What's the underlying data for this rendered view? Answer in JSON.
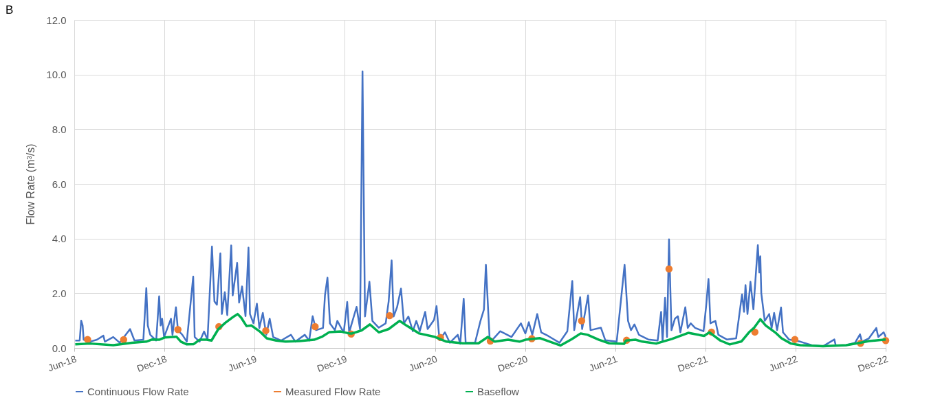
{
  "chart_data": {
    "type": "line",
    "ylabel": "Flow Rate (m³/s)",
    "annotations": [
      "B"
    ],
    "xlim": [
      "2018-06-01",
      "2022-12-01"
    ],
    "xticks": [
      {
        "value": "2018-06-01",
        "label": "Jun-18"
      },
      {
        "value": "2018-12-01",
        "label": "Dec-18"
      },
      {
        "value": "2019-06-01",
        "label": "Jun-19"
      },
      {
        "value": "2019-12-01",
        "label": "Dec-19"
      },
      {
        "value": "2020-06-01",
        "label": "Jun-20"
      },
      {
        "value": "2020-12-01",
        "label": "Dec-20"
      },
      {
        "value": "2021-06-01",
        "label": "Jun-21"
      },
      {
        "value": "2021-12-01",
        "label": "Dec-21"
      },
      {
        "value": "2022-06-01",
        "label": "Jun-22"
      },
      {
        "value": "2022-12-01",
        "label": "Dec-22"
      }
    ],
    "ylim": [
      0,
      12
    ],
    "yticks": [
      {
        "value": 0,
        "label": "0.0"
      },
      {
        "value": 2,
        "label": "2.0"
      },
      {
        "value": 4,
        "label": "4.0"
      },
      {
        "value": 6,
        "label": "6.0"
      },
      {
        "value": 8,
        "label": "8.0"
      },
      {
        "value": 10,
        "label": "10.0"
      },
      {
        "value": 12,
        "label": "12.0"
      }
    ],
    "grid": true,
    "legend": "bottom",
    "series": [
      {
        "name": "Continuous Flow Rate",
        "type": "line",
        "color": "#4472c4",
        "x": [
          "2018-06-03",
          "2018-06-12",
          "2018-06-15",
          "2018-06-18",
          "2018-06-20",
          "2018-07-03",
          "2018-07-17",
          "2018-07-30",
          "2018-08-02",
          "2018-08-19",
          "2018-09-01",
          "2018-09-22",
          "2018-10-01",
          "2018-10-19",
          "2018-10-25",
          "2018-10-28",
          "2018-11-02",
          "2018-11-14",
          "2018-11-20",
          "2018-11-23",
          "2018-11-26",
          "2018-11-30",
          "2018-12-14",
          "2018-12-17",
          "2018-12-24",
          "2018-12-28",
          "2019-01-06",
          "2019-01-15",
          "2019-01-28",
          "2019-01-31",
          "2019-02-10",
          "2019-02-19",
          "2019-02-26",
          "2019-03-07",
          "2019-03-12",
          "2019-03-17",
          "2019-03-24",
          "2019-03-27",
          "2019-04-02",
          "2019-04-07",
          "2019-04-15",
          "2019-04-18",
          "2019-04-27",
          "2019-05-01",
          "2019-05-07",
          "2019-05-14",
          "2019-05-20",
          "2019-05-23",
          "2019-05-30",
          "2019-06-06",
          "2019-06-11",
          "2019-06-18",
          "2019-06-25",
          "2019-07-02",
          "2019-07-09",
          "2019-07-25",
          "2019-08-14",
          "2019-08-23",
          "2019-09-11",
          "2019-09-20",
          "2019-09-27",
          "2019-10-04",
          "2019-10-18",
          "2019-10-22",
          "2019-10-27",
          "2019-11-01",
          "2019-11-11",
          "2019-11-16",
          "2019-11-25",
          "2019-11-29",
          "2019-12-06",
          "2019-12-10",
          "2019-12-25",
          "2020-01-01",
          "2020-01-06",
          "2020-01-11",
          "2020-01-20",
          "2020-01-26",
          "2020-02-08",
          "2020-02-22",
          "2020-02-28",
          "2020-03-05",
          "2020-03-09",
          "2020-03-16",
          "2020-03-24",
          "2020-03-30",
          "2020-04-08",
          "2020-04-17",
          "2020-04-24",
          "2020-05-01",
          "2020-05-12",
          "2020-05-17",
          "2020-05-30",
          "2020-06-04",
          "2020-06-10",
          "2020-06-21",
          "2020-07-01",
          "2020-07-17",
          "2020-07-22",
          "2020-07-29",
          "2020-08-02",
          "2020-08-21",
          "2020-09-01",
          "2020-09-08",
          "2020-09-12",
          "2020-09-17",
          "2020-09-20",
          "2020-10-11",
          "2020-11-03",
          "2020-11-22",
          "2020-12-01",
          "2020-12-08",
          "2020-12-15",
          "2020-12-25",
          "2021-01-02",
          "2021-01-16",
          "2021-02-08",
          "2021-02-24",
          "2021-03-06",
          "2021-03-10",
          "2021-03-22",
          "2021-03-26",
          "2021-04-07",
          "2021-04-12",
          "2021-05-03",
          "2021-05-12",
          "2021-06-04",
          "2021-06-20",
          "2021-06-27",
          "2021-07-03",
          "2021-07-10",
          "2021-07-19",
          "2021-08-07",
          "2021-08-26",
          "2021-09-02",
          "2021-09-05",
          "2021-09-10",
          "2021-09-14",
          "2021-09-18",
          "2021-09-23",
          "2021-09-30",
          "2021-10-06",
          "2021-10-11",
          "2021-10-21",
          "2021-10-26",
          "2021-11-01",
          "2021-11-10",
          "2021-11-27",
          "2021-12-02",
          "2021-12-07",
          "2021-12-11",
          "2021-12-21",
          "2021-12-27",
          "2022-01-13",
          "2022-02-01",
          "2022-02-13",
          "2022-02-17",
          "2022-02-20",
          "2022-02-24",
          "2022-03-02",
          "2022-03-08",
          "2022-03-17",
          "2022-03-20",
          "2022-03-22",
          "2022-03-24",
          "2022-03-31",
          "2022-04-09",
          "2022-04-14",
          "2022-04-19",
          "2022-04-25",
          "2022-05-03",
          "2022-05-07",
          "2022-05-19",
          "2022-06-11",
          "2022-07-04",
          "2022-07-27",
          "2022-08-19",
          "2022-08-22",
          "2022-09-12",
          "2022-09-30",
          "2022-10-10",
          "2022-10-14",
          "2022-10-28",
          "2022-11-12",
          "2022-11-16",
          "2022-11-27",
          "2022-12-01"
        ],
        "values": [
          0.27,
          0.27,
          1.0,
          0.82,
          0.3,
          0.23,
          0.3,
          0.45,
          0.23,
          0.4,
          0.19,
          0.69,
          0.27,
          0.3,
          2.19,
          0.82,
          0.48,
          0.27,
          1.89,
          0.82,
          1.07,
          0.4,
          1.07,
          0.48,
          1.49,
          0.65,
          0.48,
          0.23,
          2.61,
          0.4,
          0.23,
          0.6,
          0.3,
          3.71,
          1.7,
          1.58,
          3.46,
          1.24,
          2.04,
          1.2,
          3.75,
          1.92,
          3.11,
          1.66,
          2.25,
          1.16,
          3.67,
          1.24,
          0.9,
          1.62,
          0.73,
          1.28,
          0.48,
          1.07,
          0.4,
          0.27,
          0.48,
          0.23,
          0.48,
          0.27,
          1.16,
          0.65,
          0.73,
          1.93,
          2.57,
          0.9,
          0.65,
          0.99,
          0.69,
          0.57,
          1.68,
          0.57,
          1.5,
          0.69,
          10.12,
          1.15,
          2.42,
          0.99,
          0.74,
          0.9,
          1.7,
          3.2,
          1.15,
          1.49,
          2.17,
          0.9,
          1.15,
          0.61,
          0.99,
          0.61,
          1.32,
          0.69,
          1.03,
          1.53,
          0.28,
          0.57,
          0.19,
          0.48,
          0.15,
          1.8,
          0.19,
          0.19,
          0.99,
          1.4,
          3.04,
          1.24,
          0.19,
          0.61,
          0.4,
          0.9,
          0.53,
          0.94,
          0.48,
          1.24,
          0.57,
          0.44,
          0.19,
          0.61,
          2.45,
          0.65,
          1.86,
          0.69,
          1.92,
          0.65,
          0.74,
          0.28,
          0.23,
          3.04,
          0.99,
          0.65,
          0.86,
          0.48,
          0.31,
          0.27,
          1.32,
          0.23,
          1.83,
          0.4,
          3.97,
          0.65,
          1.07,
          1.16,
          0.57,
          1.49,
          0.73,
          0.9,
          0.73,
          0.61,
          1.49,
          2.52,
          0.9,
          0.99,
          0.48,
          0.31,
          0.35,
          1.96,
          1.32,
          2.3,
          1.24,
          2.42,
          1.41,
          3.76,
          2.76,
          3.35,
          2.0,
          0.99,
          1.24,
          0.73,
          1.28,
          0.65,
          1.48,
          0.57,
          0.31,
          0.23,
          0.1,
          0.06,
          0.31,
          0.08,
          0.1,
          0.19,
          0.5,
          0.23,
          0.35,
          0.73,
          0.4,
          0.57,
          0.4
        ]
      },
      {
        "name": "Measured Flow Rate",
        "type": "scatter",
        "marker": "circle",
        "color": "#ed7d31",
        "x": [
          "2018-06-28",
          "2018-09-09",
          "2018-12-28",
          "2019-03-21",
          "2019-06-24",
          "2019-10-02",
          "2019-12-14",
          "2020-03-01",
          "2020-06-12",
          "2020-09-21",
          "2020-12-14",
          "2021-03-25",
          "2021-06-24",
          "2021-09-18",
          "2021-12-13",
          "2022-03-11",
          "2022-05-31",
          "2022-10-11",
          "2022-12-01"
        ],
        "values": [
          0.31,
          0.3,
          0.67,
          0.78,
          0.63,
          0.78,
          0.51,
          1.18,
          0.38,
          0.25,
          0.34,
          0.99,
          0.28,
          2.89,
          0.58,
          0.58,
          0.31,
          0.17,
          0.27
        ]
      },
      {
        "name": "Baseflow",
        "type": "line",
        "color": "#00b050",
        "x": [
          "2018-06-03",
          "2018-07-03",
          "2018-08-19",
          "2018-09-26",
          "2018-10-25",
          "2018-11-06",
          "2018-11-20",
          "2018-12-01",
          "2018-12-25",
          "2019-01-03",
          "2019-01-15",
          "2019-01-29",
          "2019-02-10",
          "2019-02-24",
          "2019-03-06",
          "2019-03-20",
          "2019-04-03",
          "2019-04-17",
          "2019-04-28",
          "2019-05-05",
          "2019-05-16",
          "2019-05-26",
          "2019-06-12",
          "2019-06-26",
          "2019-07-15",
          "2019-08-03",
          "2019-08-31",
          "2019-09-30",
          "2019-10-17",
          "2019-10-31",
          "2019-11-23",
          "2019-12-10",
          "2019-12-16",
          "2020-01-04",
          "2020-01-21",
          "2020-02-08",
          "2020-02-28",
          "2020-03-21",
          "2020-04-04",
          "2020-04-30",
          "2020-06-01",
          "2020-06-24",
          "2020-07-27",
          "2020-08-28",
          "2020-09-16",
          "2020-09-30",
          "2020-10-27",
          "2020-11-19",
          "2020-12-01",
          "2020-12-30",
          "2021-02-10",
          "2021-03-05",
          "2021-03-23",
          "2021-04-06",
          "2021-04-29",
          "2021-05-20",
          "2021-06-19",
          "2021-06-23",
          "2021-07-12",
          "2021-07-26",
          "2021-08-23",
          "2021-09-24",
          "2021-10-27",
          "2021-11-05",
          "2021-11-28",
          "2021-12-09",
          "2021-12-31",
          "2022-01-19",
          "2022-02-12",
          "2022-02-27",
          "2022-03-09",
          "2022-03-22",
          "2022-04-02",
          "2022-04-21",
          "2022-05-04",
          "2022-05-23",
          "2022-06-11",
          "2022-07-27",
          "2022-09-12",
          "2022-10-10",
          "2022-10-28",
          "2022-12-01"
        ],
        "values": [
          0.13,
          0.16,
          0.1,
          0.19,
          0.23,
          0.31,
          0.3,
          0.38,
          0.41,
          0.23,
          0.13,
          0.14,
          0.3,
          0.3,
          0.27,
          0.69,
          0.92,
          1.11,
          1.24,
          1.11,
          0.8,
          0.82,
          0.6,
          0.35,
          0.27,
          0.23,
          0.25,
          0.3,
          0.42,
          0.58,
          0.6,
          0.53,
          0.53,
          0.64,
          0.86,
          0.57,
          0.69,
          0.99,
          0.82,
          0.53,
          0.4,
          0.23,
          0.17,
          0.17,
          0.4,
          0.23,
          0.3,
          0.23,
          0.3,
          0.36,
          0.09,
          0.32,
          0.53,
          0.48,
          0.3,
          0.17,
          0.15,
          0.27,
          0.3,
          0.23,
          0.16,
          0.33,
          0.55,
          0.52,
          0.44,
          0.57,
          0.27,
          0.13,
          0.24,
          0.57,
          0.73,
          1.05,
          0.82,
          0.57,
          0.35,
          0.16,
          0.1,
          0.06,
          0.1,
          0.19,
          0.25,
          0.31
        ]
      }
    ]
  }
}
